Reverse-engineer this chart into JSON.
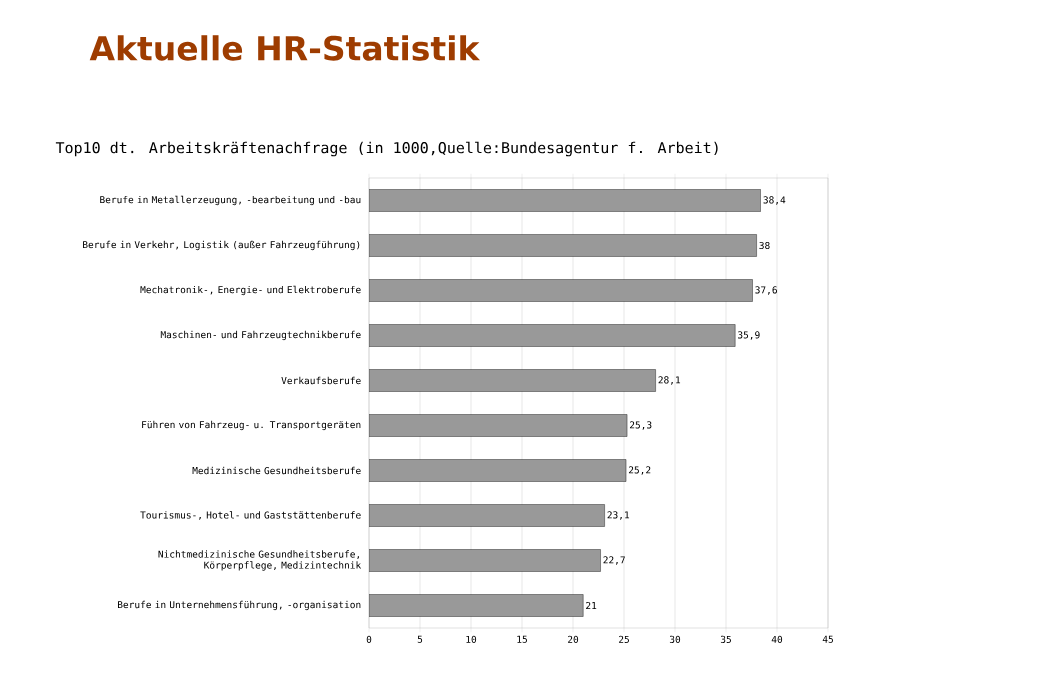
{
  "chart_data": {
    "type": "bar",
    "orientation": "horizontal",
    "title": "Aktuelle HR-Statistik",
    "subtitle": "Top10 dt. Arbeitskräftenachfrage (in 1000,Quelle:Bundesagentur f. Arbeit)",
    "categories": [
      "Berufe in Metallerzeugung, -bearbeitung und -bau",
      "Berufe in Verkehr, Logistik (außer Fahrzeugführung)",
      "Mechatronik-, Energie- und Elektroberufe",
      "Maschinen- und Fahrzeugtechnikberufe",
      "Verkaufsberufe",
      "Führen von Fahrzeug- u. Transportgeräten",
      "Medizinische Gesundheitsberufe",
      "Tourismus-, Hotel- und Gaststättenberufe",
      "Nichtmedizinische Gesundheitsberufe, Körperpflege, Medizintechnik",
      "Berufe in Unternehmensführung, -organisation"
    ],
    "values": [
      38.4,
      38,
      37.6,
      35.9,
      28.1,
      25.3,
      25.2,
      23.1,
      22.7,
      21
    ],
    "value_labels": [
      "38,4",
      "38",
      "37,6",
      "35,9",
      "28,1",
      "25,3",
      "25,2",
      "23,1",
      "22,7",
      "21"
    ],
    "color": "#999999",
    "xlim": [
      0,
      45
    ],
    "xticks": [
      0,
      5,
      10,
      15,
      20,
      25,
      30,
      35,
      40,
      45
    ],
    "grid": "x"
  }
}
